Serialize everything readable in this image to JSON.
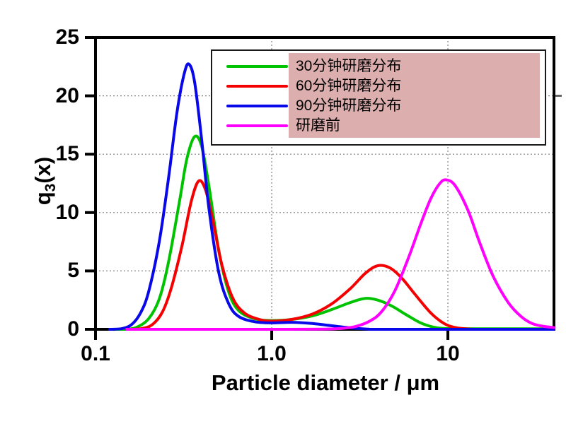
{
  "chart_data": {
    "type": "line",
    "title": "",
    "xlabel": "Particle diameter / μm",
    "ylabel": "q3(x)",
    "ylabel_parts": {
      "base": "q",
      "sub": "3",
      "rest": "(x)"
    },
    "x_scale": "log",
    "xlim": [
      0.1,
      40
    ],
    "ylim": [
      0,
      25
    ],
    "x_tick_values": [
      0.1,
      1,
      10
    ],
    "x_tick_labels": [
      "0.1",
      "1.0",
      "10"
    ],
    "y_ticks": [
      0,
      5,
      10,
      15,
      20,
      25
    ],
    "y_tick_labels": [
      "0",
      "5",
      "10",
      "15",
      "20",
      "25"
    ],
    "grid_y": [
      5,
      10,
      15,
      20
    ],
    "grid_x": [
      1,
      10
    ],
    "grid_style": "dotted",
    "legend_position": "top-right",
    "legend_highlight_color": "#dcaeae",
    "series": [
      {
        "name": "30分钟研磨分布",
        "color": "#00c300",
        "points": [
          [
            0.13,
            0
          ],
          [
            0.15,
            0.02
          ],
          [
            0.17,
            0.15
          ],
          [
            0.2,
            0.9
          ],
          [
            0.23,
            2.6
          ],
          [
            0.26,
            5.8
          ],
          [
            0.3,
            11.0
          ],
          [
            0.33,
            14.6
          ],
          [
            0.365,
            16.5
          ],
          [
            0.4,
            15.7
          ],
          [
            0.44,
            12.3
          ],
          [
            0.5,
            6.8
          ],
          [
            0.57,
            3.2
          ],
          [
            0.65,
            1.6
          ],
          [
            0.8,
            0.9
          ],
          [
            1.0,
            0.75
          ],
          [
            1.3,
            0.85
          ],
          [
            1.7,
            1.15
          ],
          [
            2.2,
            1.7
          ],
          [
            2.8,
            2.3
          ],
          [
            3.4,
            2.65
          ],
          [
            4.0,
            2.5
          ],
          [
            4.8,
            2.0
          ],
          [
            5.8,
            1.25
          ],
          [
            7.0,
            0.55
          ],
          [
            8.5,
            0.15
          ],
          [
            10,
            0.06
          ],
          [
            14,
            0.05
          ],
          [
            20,
            0.05
          ],
          [
            30,
            0.05
          ],
          [
            40,
            0.05
          ]
        ]
      },
      {
        "name": "60分钟研磨分布",
        "color": "#f40000",
        "points": [
          [
            0.15,
            0
          ],
          [
            0.18,
            0.05
          ],
          [
            0.21,
            0.4
          ],
          [
            0.24,
            1.5
          ],
          [
            0.27,
            3.6
          ],
          [
            0.31,
            7.2
          ],
          [
            0.35,
            11.0
          ],
          [
            0.385,
            12.7
          ],
          [
            0.42,
            12.0
          ],
          [
            0.46,
            9.6
          ],
          [
            0.52,
            5.6
          ],
          [
            0.6,
            2.7
          ],
          [
            0.7,
            1.4
          ],
          [
            0.85,
            0.85
          ],
          [
            1.0,
            0.7
          ],
          [
            1.3,
            0.85
          ],
          [
            1.7,
            1.3
          ],
          [
            2.2,
            2.2
          ],
          [
            2.8,
            3.5
          ],
          [
            3.4,
            4.8
          ],
          [
            4.0,
            5.45
          ],
          [
            4.7,
            5.25
          ],
          [
            5.5,
            4.35
          ],
          [
            6.5,
            3.0
          ],
          [
            8.0,
            1.4
          ],
          [
            9.5,
            0.5
          ],
          [
            11,
            0.15
          ],
          [
            13,
            0.03
          ],
          [
            16,
            0
          ],
          [
            40,
            0
          ]
        ]
      },
      {
        "name": "90分钟研磨分布",
        "color": "#0808e8",
        "points": [
          [
            0.12,
            0
          ],
          [
            0.14,
            0.05
          ],
          [
            0.16,
            0.4
          ],
          [
            0.18,
            1.4
          ],
          [
            0.2,
            3.2
          ],
          [
            0.23,
            7.5
          ],
          [
            0.26,
            13.0
          ],
          [
            0.29,
            18.6
          ],
          [
            0.32,
            22.0
          ],
          [
            0.34,
            22.7
          ],
          [
            0.365,
            21.2
          ],
          [
            0.4,
            16.3
          ],
          [
            0.44,
            10.4
          ],
          [
            0.5,
            4.9
          ],
          [
            0.57,
            2.2
          ],
          [
            0.65,
            1.1
          ],
          [
            0.8,
            0.65
          ],
          [
            1.0,
            0.55
          ],
          [
            1.3,
            0.6
          ],
          [
            1.7,
            0.5
          ],
          [
            2.2,
            0.3
          ],
          [
            2.8,
            0.12
          ],
          [
            3.5,
            0.02
          ],
          [
            4.5,
            0
          ],
          [
            40,
            0
          ]
        ]
      },
      {
        "name": "研磨前",
        "color": "#ff00ff",
        "points": [
          [
            0.15,
            0
          ],
          [
            0.6,
            0
          ],
          [
            1.2,
            0
          ],
          [
            2.0,
            0.02
          ],
          [
            2.5,
            0.08
          ],
          [
            3.0,
            0.25
          ],
          [
            3.6,
            0.7
          ],
          [
            4.2,
            1.5
          ],
          [
            5.0,
            3.3
          ],
          [
            6.0,
            6.2
          ],
          [
            7.0,
            9.0
          ],
          [
            8.0,
            11.2
          ],
          [
            9.0,
            12.5
          ],
          [
            9.8,
            12.8
          ],
          [
            11,
            12.3
          ],
          [
            13,
            10.2
          ],
          [
            15,
            7.6
          ],
          [
            18,
            4.6
          ],
          [
            22,
            2.3
          ],
          [
            26,
            1.1
          ],
          [
            30,
            0.5
          ],
          [
            35,
            0.25
          ],
          [
            40,
            0.15
          ]
        ]
      }
    ]
  }
}
